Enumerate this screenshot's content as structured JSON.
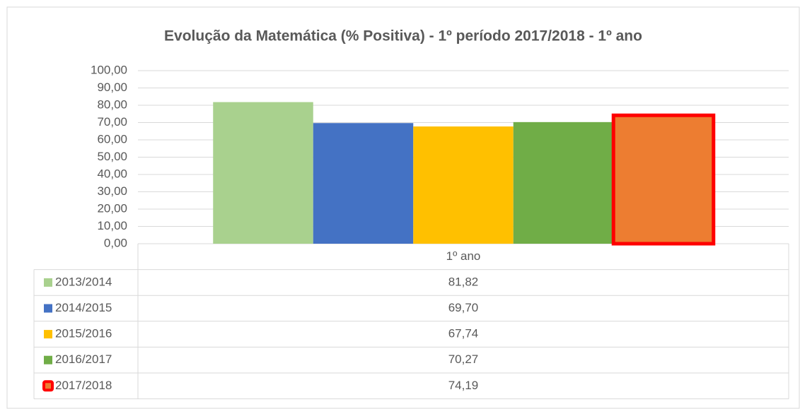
{
  "chart_data": {
    "type": "bar",
    "title": "Evolução da Matemática (% Positiva) - 1º período 2017/2018 - 1º ano",
    "categories": [
      "1º ano"
    ],
    "series": [
      {
        "name": "2013/2014",
        "color": "#a9d18e",
        "values": [
          81.82
        ],
        "value_labels": [
          "81,82"
        ]
      },
      {
        "name": "2014/2015",
        "color": "#4472c4",
        "values": [
          69.7
        ],
        "value_labels": [
          "69,70"
        ]
      },
      {
        "name": "2015/2016",
        "color": "#ffc000",
        "values": [
          67.74
        ],
        "value_labels": [
          "67,74"
        ]
      },
      {
        "name": "2016/2017",
        "color": "#70ad47",
        "values": [
          70.27
        ],
        "value_labels": [
          "70,27"
        ]
      },
      {
        "name": "2017/2018",
        "color": "#ed7d31",
        "border_color": "#ff0000",
        "values": [
          74.19
        ],
        "value_labels": [
          "74,19"
        ]
      }
    ],
    "ylim": [
      0,
      100
    ],
    "yticks": [
      {
        "value": 0,
        "label": "0,00"
      },
      {
        "value": 10,
        "label": "10,00"
      },
      {
        "value": 20,
        "label": "20,00"
      },
      {
        "value": 30,
        "label": "30,00"
      },
      {
        "value": 40,
        "label": "40,00"
      },
      {
        "value": 50,
        "label": "50,00"
      },
      {
        "value": 60,
        "label": "60,00"
      },
      {
        "value": 70,
        "label": "70,00"
      },
      {
        "value": 80,
        "label": "80,00"
      },
      {
        "value": 90,
        "label": "90,00"
      },
      {
        "value": 100,
        "label": "100,00"
      }
    ],
    "grid": true
  }
}
